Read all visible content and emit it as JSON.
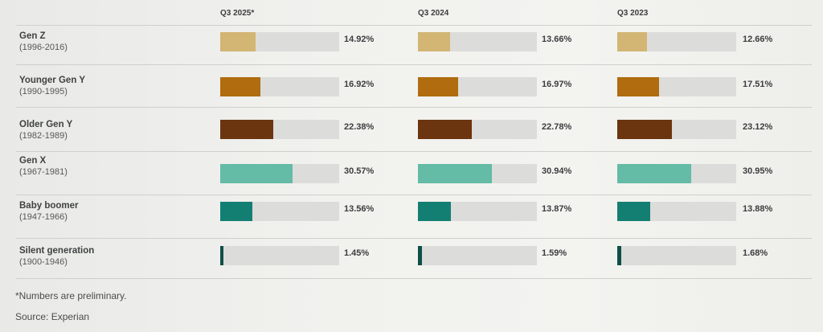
{
  "columns": [
    "Q3 2025*",
    "Q3 2024",
    "Q3 2023"
  ],
  "rows": [
    {
      "name": "Gen Z",
      "years": "(1996-2016)",
      "values": [
        14.92,
        13.66,
        12.66
      ],
      "color": "#d3b574"
    },
    {
      "name": "Younger Gen Y",
      "years": "(1990-1995)",
      "values": [
        16.92,
        16.97,
        17.51
      ],
      "color": "#b06c0e"
    },
    {
      "name": "Older Gen Y",
      "years": "(1982-1989)",
      "values": [
        22.38,
        22.78,
        23.12
      ],
      "color": "#6b3510"
    },
    {
      "name": "Gen X",
      "years": "(1967-1981)",
      "values": [
        30.57,
        30.94,
        30.95
      ],
      "color": "#64bba6"
    },
    {
      "name": "Baby boomer",
      "years": "(1947-1966)",
      "values": [
        13.56,
        13.87,
        13.88
      ],
      "color": "#137f72"
    },
    {
      "name": "Silent generation",
      "years": "(1900-1946)",
      "values": [
        1.45,
        1.59,
        1.68
      ],
      "color": "#0f4f48"
    }
  ],
  "labels": [
    [
      "14.92%",
      "13.66%",
      "12.66%"
    ],
    [
      "16.92%",
      "16.97%",
      "17.51%"
    ],
    [
      "22.38%",
      "22.78%",
      "23.12%"
    ],
    [
      "30.57%",
      "30.94%",
      "30.95%"
    ],
    [
      "13.56%",
      "13.87%",
      "13.88%"
    ],
    [
      "1.45%",
      "1.59%",
      "1.68%"
    ]
  ],
  "footnote": "*Numbers are preliminary.",
  "source": "Source: Experian",
  "chart_data": {
    "type": "bar",
    "categories": [
      "Gen Z (1996-2016)",
      "Younger Gen Y (1990-1995)",
      "Older Gen Y (1982-1989)",
      "Gen X (1967-1981)",
      "Baby boomer (1947-1966)",
      "Silent generation (1900-1946)"
    ],
    "series": [
      {
        "name": "Q3 2025*",
        "values": [
          14.92,
          16.92,
          22.38,
          30.57,
          13.56,
          1.45
        ]
      },
      {
        "name": "Q3 2024",
        "values": [
          13.66,
          16.97,
          22.78,
          30.94,
          13.87,
          1.59
        ]
      },
      {
        "name": "Q3 2023",
        "values": [
          12.66,
          17.51,
          23.12,
          30.95,
          13.88,
          1.68
        ]
      }
    ],
    "unit": "%",
    "xlim": [
      0,
      100
    ]
  }
}
